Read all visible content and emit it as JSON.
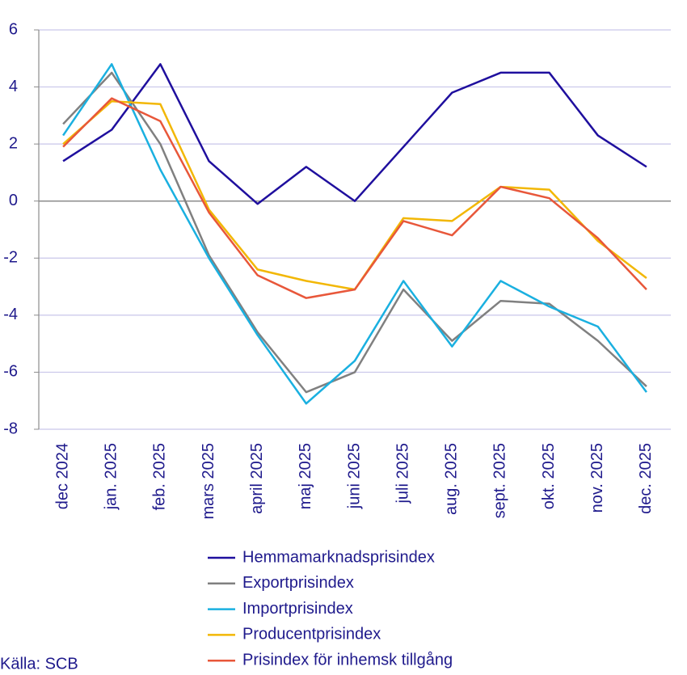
{
  "chart_data": {
    "type": "line",
    "categories": [
      "dec 2024",
      "jan. 2025",
      "feb. 2025",
      "mars 2025",
      "april 2025",
      "maj 2025",
      "juni 2025",
      "juli 2025",
      "aug. 2025",
      "sept. 2025",
      "okt. 2025",
      "nov. 2025",
      "dec. 2025"
    ],
    "series": [
      {
        "name": "Hemmamarknadsprisindex",
        "color": "#1f0f9e",
        "values": [
          1.4,
          2.5,
          4.8,
          1.4,
          -0.1,
          1.2,
          0.0,
          1.9,
          3.8,
          4.5,
          4.5,
          2.3,
          1.2
        ]
      },
      {
        "name": "Exportprisindex",
        "color": "#808080",
        "values": [
          2.7,
          4.5,
          2.0,
          -1.9,
          -4.6,
          -6.7,
          -6.0,
          -3.1,
          -4.9,
          -3.5,
          -3.6,
          -4.9,
          -6.5
        ]
      },
      {
        "name": "Importprisindex",
        "color": "#1ab0e0",
        "values": [
          2.3,
          4.8,
          1.1,
          -2.0,
          -4.7,
          -7.1,
          -5.6,
          -2.8,
          -5.1,
          -2.8,
          -3.7,
          -4.4,
          -6.7
        ]
      },
      {
        "name": "Producentprisindex",
        "color": "#f2b705",
        "values": [
          2.0,
          3.5,
          3.4,
          -0.3,
          -2.4,
          -2.8,
          -3.1,
          -0.6,
          -0.7,
          0.5,
          0.4,
          -1.4,
          -2.7
        ]
      },
      {
        "name": "Prisindex för inhemsk tillgång",
        "color": "#e8573a",
        "values": [
          1.9,
          3.6,
          2.8,
          -0.4,
          -2.6,
          -3.4,
          -3.1,
          -0.7,
          -1.2,
          0.5,
          0.1,
          -1.3,
          -3.1
        ]
      }
    ],
    "ylim": [
      -8,
      6
    ],
    "yticks": [
      -8,
      -6,
      -4,
      -2,
      0,
      2,
      4,
      6
    ],
    "grid": true,
    "source": "Källa: SCB"
  }
}
